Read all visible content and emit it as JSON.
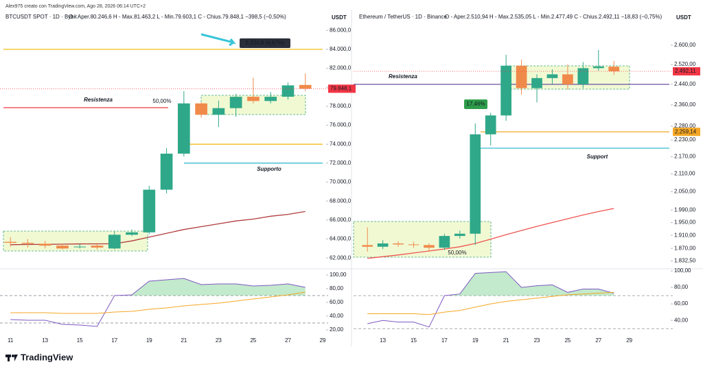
{
  "header": "Alex975 creato con TradingView.com, Ago 28, 2026 06:14 UTC+2",
  "brand": "TradingView",
  "chart_data": [
    {
      "type": "candlestick",
      "title": "BTCUSDT SPOT · 1D · Bybit",
      "ohlc_text": "O - Aper.80.246,6  H - Max.81.463,2  L - Min.79.603,1  C - Chius.79.848,1  −398,5 (−0,50%)",
      "currency": "USDT",
      "x": [
        11,
        12,
        13,
        14,
        15,
        16,
        17,
        18,
        19,
        20,
        21,
        22,
        23,
        24,
        25,
        26,
        27,
        28
      ],
      "open": [
        63700,
        63600,
        63500,
        63300,
        63200,
        63300,
        63000,
        64450,
        64700,
        69200,
        73000,
        78300,
        77100,
        77800,
        79000,
        78550,
        79000,
        80246.6
      ],
      "high": [
        64200,
        64000,
        63800,
        63500,
        63500,
        63600,
        64800,
        65000,
        69600,
        73600,
        79600,
        78400,
        78600,
        79300,
        81000,
        79500,
        80500,
        81463.2
      ],
      "low": [
        63200,
        63100,
        63000,
        62900,
        63000,
        62900,
        62900,
        64300,
        64500,
        68800,
        72700,
        76800,
        75800,
        76900,
        78300,
        78300,
        78700,
        79603.1
      ],
      "close": [
        63600,
        63500,
        63300,
        63000,
        63200,
        63100,
        64450,
        64700,
        69200,
        73000,
        78300,
        77100,
        77800,
        79000,
        78550,
        79000,
        80200,
        79848.1
      ],
      "up_color": "#2fa889",
      "down_color": "#f08a4b",
      "log": false,
      "xlim": [
        10.4,
        29
      ],
      "xticks": [
        11,
        13,
        15,
        17,
        19,
        21,
        23,
        25,
        27,
        29
      ],
      "ylim": [
        61000,
        86600
      ],
      "yticks": [
        {
          "value": 62000,
          "label": "62.000,0"
        },
        {
          "value": 64000,
          "label": "64.000,0"
        },
        {
          "value": 66000,
          "label": "66.000,0"
        },
        {
          "value": 68000,
          "label": "68.000,0"
        },
        {
          "value": 70000,
          "label": "70.000,0"
        },
        {
          "value": 72000,
          "label": "72.000,0"
        },
        {
          "value": 74000,
          "label": "74.000,0"
        },
        {
          "value": 76000,
          "label": "76.000,0"
        },
        {
          "value": 78000,
          "label": "78.000,0"
        },
        {
          "value": 80000,
          "label": "80.000,0"
        },
        {
          "value": 82000,
          "label": "82.000,0"
        },
        {
          "value": 84000,
          "label": "84.000,0"
        },
        {
          "value": 86000,
          "label": "86.000,0"
        }
      ],
      "ma": {
        "color": "#b23a3a",
        "values": [
          63400,
          63420,
          63440,
          63460,
          63480,
          63490,
          63500,
          63800,
          64200,
          64600,
          65000,
          65300,
          65600,
          65900,
          66100,
          66400,
          66600,
          66900
        ]
      },
      "levels": [
        {
          "value": 84000,
          "color": "#f5b400"
        },
        {
          "value": 77850,
          "color": "#f23645",
          "label": "Resistenza"
        },
        {
          "value": 74000,
          "color": "#f5b400"
        },
        {
          "value": 72000,
          "color": "#22b5c9",
          "label": "Supporto"
        }
      ],
      "last": {
        "value": 79848.1,
        "label": "79.848,1",
        "color": "#f23645"
      },
      "annotations": [
        "5.234,8 (6,67%)",
        "50,00%"
      ],
      "rsi": {
        "ylim": [
          11,
          106
        ],
        "yticks": [
          {
            "value": 20,
            "label": "20,00"
          },
          {
            "value": 40,
            "label": "40,00"
          },
          {
            "value": 60,
            "label": "60,00"
          },
          {
            "value": 80,
            "label": "80,00"
          },
          {
            "value": 100,
            "label": "100,00"
          }
        ],
        "bands": [
          70,
          30
        ],
        "color": "#7e57c2",
        "ma_color": "#f5a623",
        "values": [
          35,
          34,
          34,
          28,
          27,
          25,
          70,
          71,
          91,
          93,
          95,
          86,
          87,
          87,
          84,
          85,
          87,
          82
        ],
        "ma": [
          45,
          45,
          45,
          44,
          44,
          44,
          46,
          47,
          50,
          52,
          55,
          57,
          59,
          62,
          65,
          68,
          71,
          75
        ]
      }
    },
    {
      "type": "candlestick",
      "title": "Ethereum / TetherUS · 1D · Binance",
      "ohlc_text": "O - Aper.2.510,94  H - Max.2.535,05  L - Min.2.477,49  C - Chius.2.492,11  −18,83 (−0,75%)",
      "currency": "USDT",
      "x": [
        12,
        13,
        14,
        15,
        16,
        17,
        18,
        19,
        20,
        21,
        22,
        23,
        24,
        25,
        26,
        27,
        28
      ],
      "open": [
        1880,
        1875,
        1885,
        1882,
        1880,
        1872,
        1908,
        1915,
        2250,
        2320,
        2515,
        2425,
        2465,
        2480,
        2440,
        2505,
        2510.94
      ],
      "high": [
        1935,
        1895,
        1892,
        1890,
        1885,
        1915,
        1925,
        2290,
        2330,
        2560,
        2540,
        2480,
        2500,
        2520,
        2530,
        2580,
        2535.05
      ],
      "low": [
        1860,
        1868,
        1875,
        1872,
        1860,
        1865,
        1900,
        1880,
        2210,
        2300,
        2400,
        2370,
        2440,
        2420,
        2425,
        2495,
        2477.49
      ],
      "close": [
        1875,
        1885,
        1882,
        1880,
        1872,
        1908,
        1915,
        2250,
        2320,
        2515,
        2425,
        2465,
        2480,
        2440,
        2505,
        2512,
        2492.11
      ],
      "up_color": "#2fa889",
      "down_color": "#f08a4b",
      "log": true,
      "xlim": [
        11.1,
        31.6
      ],
      "xticks": [
        13,
        15,
        17,
        19,
        21,
        23,
        25,
        27,
        29
      ],
      "ylim": [
        1813,
        2688
      ],
      "yticks": [
        {
          "value": 1832.5,
          "label": "1.832,50"
        },
        {
          "value": 1870,
          "label": "1.870,00"
        },
        {
          "value": 1910,
          "label": "1.910,00"
        },
        {
          "value": 1950,
          "label": "1.950,00"
        },
        {
          "value": 1990,
          "label": "1.990,00"
        },
        {
          "value": 2050,
          "label": "2.050,00"
        },
        {
          "value": 2110,
          "label": "2.110,00"
        },
        {
          "value": 2170,
          "label": "2.170,00"
        },
        {
          "value": 2230,
          "label": "2.230,00"
        },
        {
          "value": 2280,
          "label": "2.280,00"
        },
        {
          "value": 2360,
          "label": "2.360,00"
        },
        {
          "value": 2440,
          "label": "2.440,00"
        },
        {
          "value": 2520,
          "label": "2.520,00"
        },
        {
          "value": 2600,
          "label": "2.600,00"
        }
      ],
      "ma": {
        "color": "#ef5350",
        "values": [
          1840,
          1845,
          1850,
          1856,
          1862,
          1868,
          1875,
          1885,
          1898,
          1912,
          1925,
          1938,
          1950,
          1962,
          1974,
          1985,
          1995
        ]
      },
      "levels": [
        {
          "value": 2440,
          "color": "#6a4fa0",
          "label": "Resistenza"
        },
        {
          "value": 2259.14,
          "color": "#f5a623",
          "price_label": "2.259,14"
        },
        {
          "value": 2200,
          "color": "#22b5c9",
          "label": "Support"
        }
      ],
      "last": {
        "value": 2492.11,
        "label": "2.492,11",
        "color": "#f23645"
      },
      "annotations": [
        "17,46%",
        "50,00%"
      ],
      "rsi": {
        "ylim": [
          21,
          100
        ],
        "yticks": [
          {
            "value": 40,
            "label": "40,00"
          },
          {
            "value": 60,
            "label": "60,00"
          },
          {
            "value": 80,
            "label": "80,00"
          },
          {
            "value": 100,
            "label": "100,00"
          }
        ],
        "bands": [
          70,
          30
        ],
        "color": "#7e57c2",
        "ma_color": "#f5a623",
        "values": [
          36,
          40,
          38,
          38,
          32,
          70,
          72,
          97,
          98,
          99,
          80,
          82,
          83,
          74,
          78,
          78,
          73
        ],
        "ma": [
          48,
          48,
          48,
          48,
          47,
          50,
          52,
          56,
          60,
          63,
          65,
          67,
          69,
          71,
          72,
          73,
          74
        ]
      }
    }
  ]
}
